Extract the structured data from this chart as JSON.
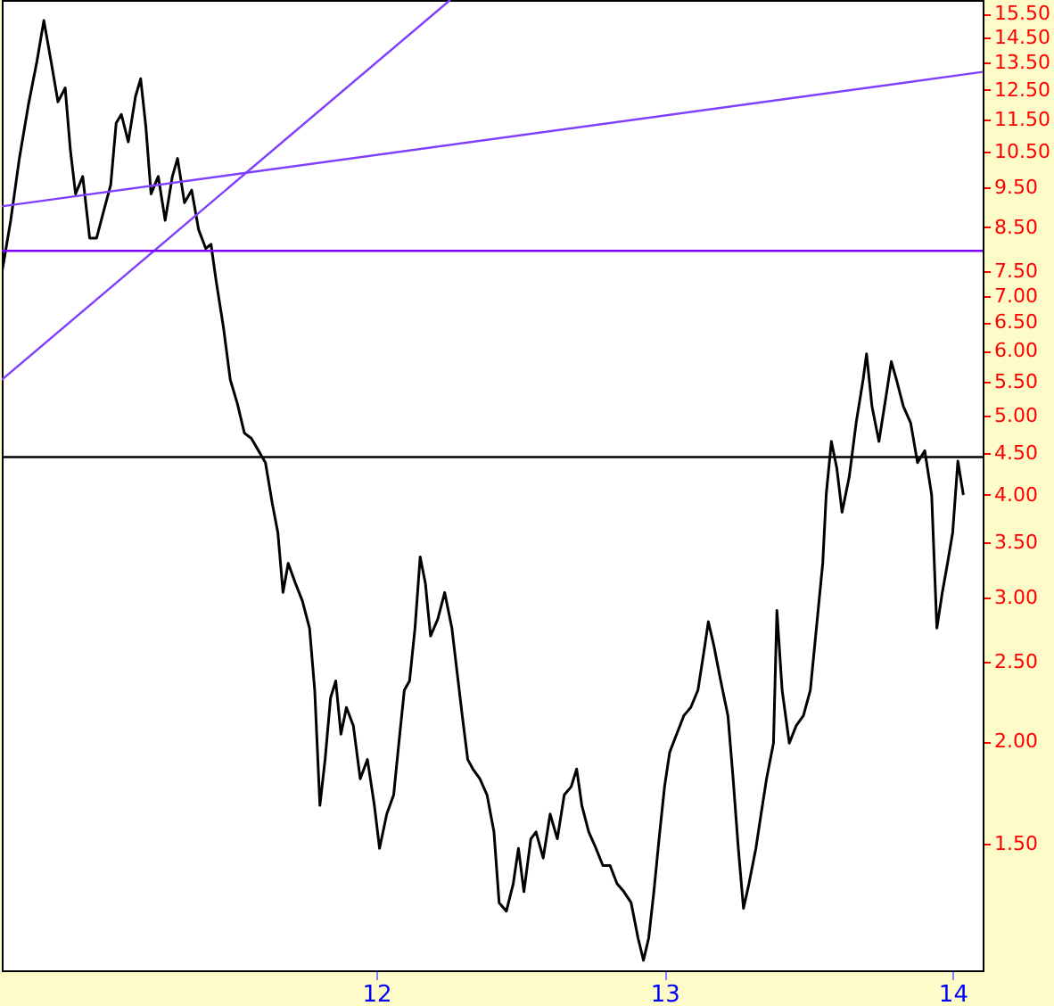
{
  "chart_data": {
    "type": "line",
    "log": "y",
    "grid": false,
    "line_style": "solid",
    "marker": "none",
    "xlim": [
      2010.7,
      2014.104
    ],
    "ylim": [
      1.05,
      16.1
    ],
    "xticks": [
      {
        "value": 2012,
        "label": "12"
      },
      {
        "value": 2013,
        "label": "13"
      },
      {
        "value": 2014,
        "label": "14"
      }
    ],
    "yticks": [
      {
        "value": 1.5,
        "label": "1.50"
      },
      {
        "value": 2,
        "label": "2.00"
      },
      {
        "value": 2.5,
        "label": "2.50"
      },
      {
        "value": 3,
        "label": "3.00"
      },
      {
        "value": 3.5,
        "label": "3.50"
      },
      {
        "value": 4,
        "label": "4.00"
      },
      {
        "value": 4.5,
        "label": "4.50"
      },
      {
        "value": 5,
        "label": "5.00"
      },
      {
        "value": 5.5,
        "label": "5.50"
      },
      {
        "value": 6,
        "label": "6.00"
      },
      {
        "value": 6.5,
        "label": "6.50"
      },
      {
        "value": 7,
        "label": "7.00"
      },
      {
        "value": 7.5,
        "label": "7.50"
      },
      {
        "value": 8.5,
        "label": "8.50"
      },
      {
        "value": 9.5,
        "label": "9.50"
      },
      {
        "value": 10.5,
        "label": "10.50"
      },
      {
        "value": 11.5,
        "label": "11.50"
      },
      {
        "value": 12.5,
        "label": "12.50"
      },
      {
        "value": 13.5,
        "label": "13.50"
      },
      {
        "value": 14.5,
        "label": "14.50"
      },
      {
        "value": 15.5,
        "label": "15.50"
      }
    ],
    "series": [
      {
        "color": "#000000",
        "x": [
          2010.7,
          2010.731,
          2010.761,
          2010.792,
          2010.822,
          2010.846,
          2010.871,
          2010.895,
          2010.92,
          2010.938,
          2010.956,
          2010.981,
          2011.005,
          2011.029,
          2011.054,
          2011.078,
          2011.097,
          2011.115,
          2011.139,
          2011.164,
          2011.182,
          2011.2,
          2011.218,
          2011.243,
          2011.267,
          2011.292,
          2011.31,
          2011.334,
          2011.359,
          2011.383,
          2011.408,
          2011.426,
          2011.444,
          2011.469,
          2011.493,
          2011.517,
          2011.542,
          2011.566,
          2011.591,
          2011.615,
          2011.639,
          2011.658,
          2011.676,
          2011.694,
          2011.719,
          2011.743,
          2011.768,
          2011.786,
          2011.804,
          2011.822,
          2011.841,
          2011.859,
          2011.877,
          2011.896,
          2011.92,
          2011.944,
          2011.969,
          2011.993,
          2012.011,
          2012.036,
          2012.06,
          2012.078,
          2012.097,
          2012.115,
          2012.134,
          2012.152,
          2012.17,
          2012.188,
          2012.213,
          2012.237,
          2012.262,
          2012.28,
          2012.298,
          2012.317,
          2012.335,
          2012.359,
          2012.384,
          2012.408,
          2012.426,
          2012.451,
          2012.475,
          2012.493,
          2012.512,
          2012.536,
          2012.554,
          2012.579,
          2012.603,
          2012.628,
          2012.652,
          2012.676,
          2012.695,
          2012.713,
          2012.737,
          2012.762,
          2012.786,
          2012.811,
          2012.835,
          2012.859,
          2012.884,
          2012.908,
          2012.927,
          2012.945,
          2012.963,
          2012.981,
          2013.0,
          2013.018,
          2013.042,
          2013.067,
          2013.091,
          2013.116,
          2013.14,
          2013.152,
          2013.171,
          2013.195,
          2013.22,
          2013.238,
          2013.256,
          2013.274,
          2013.293,
          2013.317,
          2013.335,
          2013.354,
          2013.378,
          2013.39,
          2013.408,
          2013.433,
          2013.457,
          2013.482,
          2013.506,
          2013.53,
          2013.549,
          2013.561,
          2013.579,
          2013.598,
          2013.616,
          2013.641,
          2013.665,
          2013.689,
          2013.701,
          2013.72,
          2013.744,
          2013.768,
          2013.787,
          2013.805,
          2013.829,
          2013.854,
          2013.878,
          2013.903,
          2013.927,
          2013.945,
          2013.964,
          2013.982,
          2014.0,
          2014.018,
          2014.037
        ],
        "values": [
          7.46,
          8.66,
          10.31,
          11.97,
          13.55,
          15.2,
          13.55,
          12.09,
          12.57,
          10.56,
          9.33,
          9.8,
          8.24,
          8.24,
          8.9,
          9.57,
          11.39,
          11.67,
          10.8,
          12.27,
          12.9,
          11.27,
          9.33,
          9.8,
          8.66,
          9.8,
          10.31,
          9.1,
          9.43,
          8.44,
          8.0,
          8.1,
          7.3,
          6.42,
          5.53,
          5.18,
          4.76,
          4.69,
          4.53,
          4.38,
          3.9,
          3.6,
          3.04,
          3.3,
          3.12,
          2.97,
          2.75,
          2.31,
          1.67,
          1.9,
          2.26,
          2.37,
          2.04,
          2.2,
          2.09,
          1.8,
          1.9,
          1.67,
          1.48,
          1.63,
          1.72,
          1.99,
          2.31,
          2.37,
          2.75,
          3.36,
          3.12,
          2.69,
          2.82,
          3.04,
          2.75,
          2.43,
          2.15,
          1.9,
          1.85,
          1.8,
          1.72,
          1.55,
          1.27,
          1.24,
          1.34,
          1.48,
          1.31,
          1.52,
          1.55,
          1.44,
          1.63,
          1.52,
          1.72,
          1.76,
          1.85,
          1.67,
          1.55,
          1.48,
          1.41,
          1.41,
          1.34,
          1.31,
          1.27,
          1.15,
          1.08,
          1.15,
          1.31,
          1.52,
          1.76,
          1.94,
          2.04,
          2.15,
          2.2,
          2.31,
          2.62,
          2.8,
          2.62,
          2.37,
          2.15,
          1.8,
          1.48,
          1.25,
          1.34,
          1.48,
          1.63,
          1.8,
          1.99,
          2.89,
          2.31,
          1.99,
          2.09,
          2.15,
          2.31,
          2.82,
          3.3,
          4.0,
          4.65,
          4.31,
          3.81,
          4.21,
          4.9,
          5.53,
          5.95,
          5.13,
          4.65,
          5.26,
          5.82,
          5.53,
          5.13,
          4.9,
          4.38,
          4.53,
          4.0,
          2.75,
          3.04,
          3.3,
          3.6,
          4.4,
          4.0
        ]
      },
      {
        "color": "#7f3fff",
        "x": [
          2010.7,
          2014.104
        ],
        "values": [
          9.01,
          13.15
        ]
      },
      {
        "color": "#7f3fff",
        "x": [
          2010.7,
          2012.256
        ],
        "values": [
          5.53,
          16.1
        ]
      }
    ],
    "ref_lines": [
      {
        "axis": "y",
        "value": 7.95,
        "color": "#7f00ff"
      },
      {
        "axis": "y",
        "value": 4.45,
        "color": "#000000"
      }
    ]
  }
}
